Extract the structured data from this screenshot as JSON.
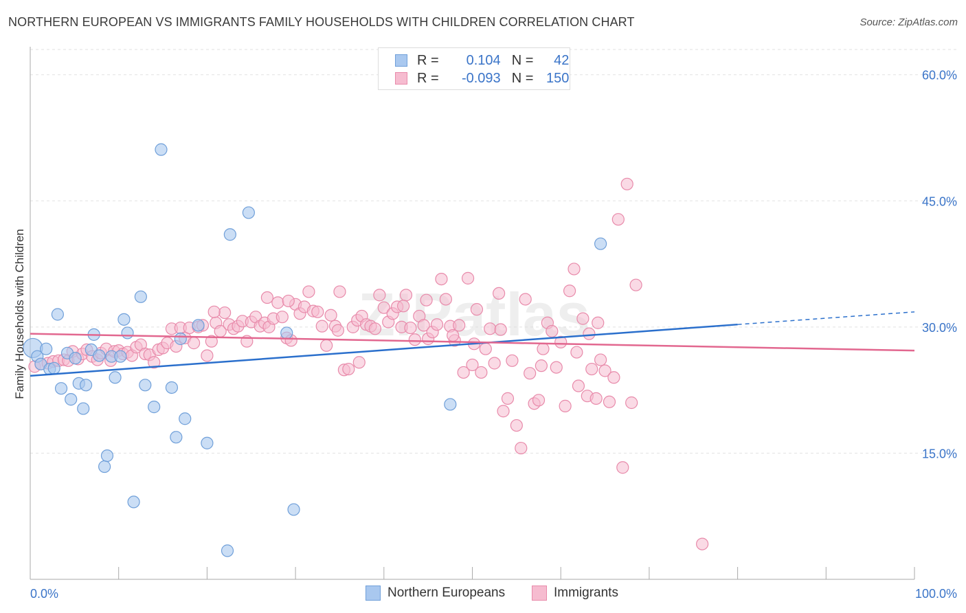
{
  "title": "NORTHERN EUROPEAN VS IMMIGRANTS FAMILY HOUSEHOLDS WITH CHILDREN CORRELATION CHART",
  "source": "Source: ZipAtlas.com",
  "watermark": "ZIPatlas",
  "colors": {
    "blue_fill": "#a9c8ef",
    "blue_stroke": "#6f9fd9",
    "blue_line": "#2a6fcc",
    "pink_fill": "#f6bcd0",
    "pink_stroke": "#e88aaa",
    "pink_line": "#e2678f",
    "axis_text": "#3a74c8",
    "grid": "#e2e2e2"
  },
  "legend": {
    "r_label": "R =",
    "n_label": "N =",
    "rows": [
      {
        "series": "Northern Europeans",
        "r": "0.104",
        "n": "42"
      },
      {
        "series": "Immigrants",
        "r": "-0.093",
        "n": "150"
      }
    ]
  },
  "chart_data": {
    "type": "scatter",
    "title": "NORTHERN EUROPEAN VS IMMIGRANTS FAMILY HOUSEHOLDS WITH CHILDREN CORRELATION CHART",
    "xlabel": "",
    "ylabel": "Family Households with Children",
    "xlim": [
      0,
      100
    ],
    "ylim": [
      0,
      63
    ],
    "x_tick_labels": [
      "0.0%",
      "100.0%"
    ],
    "y_ticks": [
      15,
      30,
      45,
      60
    ],
    "y_tick_labels": [
      "15.0%",
      "30.0%",
      "45.0%",
      "60.0%"
    ],
    "grid": true,
    "legend_position": "top-center",
    "series": [
      {
        "name": "Northern Europeans",
        "color": "#a9c8ef",
        "trend": {
          "x": [
            0,
            80
          ],
          "y": [
            24.2,
            30.3
          ],
          "dashed_to": [
            100,
            31.8
          ]
        },
        "points": [
          [
            0.3,
            27.5
          ],
          [
            0.8,
            26.5
          ],
          [
            1.2,
            25.6
          ],
          [
            1.8,
            27.4
          ],
          [
            2.2,
            25.0
          ],
          [
            2.7,
            25.1
          ],
          [
            3.1,
            31.5
          ],
          [
            3.5,
            22.7
          ],
          [
            4.2,
            26.9
          ],
          [
            4.6,
            21.4
          ],
          [
            5.1,
            26.3
          ],
          [
            5.5,
            23.3
          ],
          [
            6.0,
            20.3
          ],
          [
            6.3,
            23.1
          ],
          [
            6.9,
            27.3
          ],
          [
            7.2,
            29.1
          ],
          [
            7.8,
            26.6
          ],
          [
            8.4,
            13.4
          ],
          [
            8.7,
            14.7
          ],
          [
            9.2,
            26.5
          ],
          [
            9.6,
            24.0
          ],
          [
            10.2,
            26.5
          ],
          [
            10.6,
            30.9
          ],
          [
            11.0,
            29.3
          ],
          [
            11.7,
            9.2
          ],
          [
            12.5,
            33.6
          ],
          [
            13.0,
            23.1
          ],
          [
            14.0,
            20.5
          ],
          [
            14.8,
            51.1
          ],
          [
            16.0,
            22.8
          ],
          [
            16.5,
            16.9
          ],
          [
            17.0,
            28.6
          ],
          [
            17.5,
            19.1
          ],
          [
            19.0,
            30.2
          ],
          [
            20.0,
            16.2
          ],
          [
            22.3,
            3.4
          ],
          [
            22.6,
            41.0
          ],
          [
            24.7,
            43.6
          ],
          [
            29.0,
            29.3
          ],
          [
            29.8,
            8.3
          ],
          [
            47.5,
            20.8
          ],
          [
            64.5,
            39.9
          ]
        ]
      },
      {
        "name": "Immigrants",
        "color": "#f6bcd0",
        "trend": {
          "x": [
            0,
            100
          ],
          "y": [
            29.2,
            27.2
          ]
        },
        "points": [
          [
            0.5,
            25.3
          ],
          [
            1.2,
            25.6
          ],
          [
            2.0,
            25.7
          ],
          [
            2.6,
            25.9
          ],
          [
            3.2,
            26.0
          ],
          [
            3.8,
            26.1
          ],
          [
            4.3,
            26.0
          ],
          [
            4.8,
            27.1
          ],
          [
            5.4,
            26.2
          ],
          [
            5.9,
            26.8
          ],
          [
            6.4,
            27.3
          ],
          [
            7.0,
            26.5
          ],
          [
            7.6,
            26.1
          ],
          [
            8.0,
            26.9
          ],
          [
            8.6,
            27.4
          ],
          [
            9.1,
            26.0
          ],
          [
            9.5,
            27.1
          ],
          [
            10.0,
            27.2
          ],
          [
            10.5,
            26.8
          ],
          [
            11.0,
            27.0
          ],
          [
            11.5,
            26.6
          ],
          [
            12.0,
            27.6
          ],
          [
            12.5,
            27.9
          ],
          [
            13.0,
            26.8
          ],
          [
            13.5,
            26.7
          ],
          [
            14.0,
            25.8
          ],
          [
            14.5,
            27.3
          ],
          [
            15.0,
            27.5
          ],
          [
            15.5,
            28.1
          ],
          [
            16.0,
            29.8
          ],
          [
            16.5,
            27.7
          ],
          [
            17.0,
            29.9
          ],
          [
            17.5,
            28.7
          ],
          [
            18.0,
            29.9
          ],
          [
            18.5,
            28.1
          ],
          [
            19.0,
            30.0
          ],
          [
            19.5,
            30.2
          ],
          [
            20.0,
            26.6
          ],
          [
            20.5,
            28.3
          ],
          [
            21.0,
            30.5
          ],
          [
            21.5,
            29.5
          ],
          [
            22.0,
            31.7
          ],
          [
            22.5,
            30.3
          ],
          [
            23.0,
            29.8
          ],
          [
            23.5,
            30.1
          ],
          [
            24.0,
            30.7
          ],
          [
            24.5,
            28.3
          ],
          [
            25.0,
            30.6
          ],
          [
            25.5,
            31.2
          ],
          [
            26.0,
            30.1
          ],
          [
            26.5,
            30.5
          ],
          [
            27.0,
            30.0
          ],
          [
            27.5,
            31.0
          ],
          [
            28.0,
            32.9
          ],
          [
            28.5,
            31.2
          ],
          [
            29.0,
            28.7
          ],
          [
            29.5,
            28.4
          ],
          [
            30.0,
            32.7
          ],
          [
            30.5,
            31.6
          ],
          [
            31.0,
            32.4
          ],
          [
            31.5,
            34.2
          ],
          [
            32.0,
            31.9
          ],
          [
            32.5,
            31.8
          ],
          [
            33.0,
            30.1
          ],
          [
            33.5,
            27.8
          ],
          [
            34.0,
            31.4
          ],
          [
            34.5,
            30.1
          ],
          [
            35.0,
            34.2
          ],
          [
            35.5,
            24.9
          ],
          [
            36.0,
            25.0
          ],
          [
            36.5,
            30.0
          ],
          [
            37.0,
            30.8
          ],
          [
            37.5,
            31.3
          ],
          [
            38.0,
            30.3
          ],
          [
            38.5,
            30.1
          ],
          [
            39.0,
            29.8
          ],
          [
            39.5,
            33.8
          ],
          [
            40.0,
            32.3
          ],
          [
            40.5,
            30.6
          ],
          [
            41.0,
            31.6
          ],
          [
            41.5,
            32.4
          ],
          [
            42.0,
            30.0
          ],
          [
            42.5,
            33.8
          ],
          [
            43.0,
            29.9
          ],
          [
            43.5,
            28.5
          ],
          [
            44.0,
            31.3
          ],
          [
            44.5,
            30.2
          ],
          [
            45.0,
            28.6
          ],
          [
            45.5,
            29.4
          ],
          [
            46.0,
            30.3
          ],
          [
            46.5,
            35.7
          ],
          [
            47.0,
            33.3
          ],
          [
            47.5,
            30.1
          ],
          [
            48.0,
            28.4
          ],
          [
            48.5,
            30.2
          ],
          [
            49.0,
            24.6
          ],
          [
            49.5,
            35.8
          ],
          [
            50.0,
            25.5
          ],
          [
            50.5,
            32.1
          ],
          [
            51.0,
            24.6
          ],
          [
            51.5,
            27.4
          ],
          [
            52.0,
            29.8
          ],
          [
            52.5,
            25.7
          ],
          [
            53.0,
            34.0
          ],
          [
            53.5,
            20.0
          ],
          [
            54.0,
            21.5
          ],
          [
            54.5,
            26.0
          ],
          [
            55.0,
            18.3
          ],
          [
            55.5,
            15.6
          ],
          [
            56.0,
            33.3
          ],
          [
            56.5,
            24.5
          ],
          [
            57.0,
            20.9
          ],
          [
            57.5,
            21.3
          ],
          [
            58.0,
            27.4
          ],
          [
            58.5,
            30.5
          ],
          [
            59.0,
            29.5
          ],
          [
            59.5,
            25.2
          ],
          [
            60.0,
            28.2
          ],
          [
            60.5,
            20.6
          ],
          [
            61.0,
            34.3
          ],
          [
            61.5,
            36.9
          ],
          [
            62.0,
            23.0
          ],
          [
            62.5,
            31.0
          ],
          [
            63.0,
            21.8
          ],
          [
            63.5,
            25.0
          ],
          [
            64.0,
            21.5
          ],
          [
            64.5,
            26.1
          ],
          [
            65.0,
            24.8
          ],
          [
            65.5,
            21.1
          ],
          [
            66.0,
            24.0
          ],
          [
            66.5,
            42.8
          ],
          [
            67.0,
            13.3
          ],
          [
            67.5,
            47.0
          ],
          [
            68.0,
            21.0
          ],
          [
            68.5,
            35.0
          ],
          [
            76.0,
            4.2
          ],
          [
            29.2,
            33.1
          ],
          [
            34.8,
            29.6
          ],
          [
            37.2,
            25.8
          ],
          [
            42.2,
            32.5
          ],
          [
            44.8,
            33.2
          ],
          [
            50.2,
            28.0
          ],
          [
            53.2,
            29.7
          ],
          [
            57.8,
            25.4
          ],
          [
            61.8,
            27.0
          ],
          [
            63.2,
            29.2
          ],
          [
            64.2,
            30.5
          ],
          [
            20.8,
            31.8
          ],
          [
            26.8,
            33.5
          ],
          [
            47.8,
            29.0
          ]
        ]
      }
    ]
  }
}
